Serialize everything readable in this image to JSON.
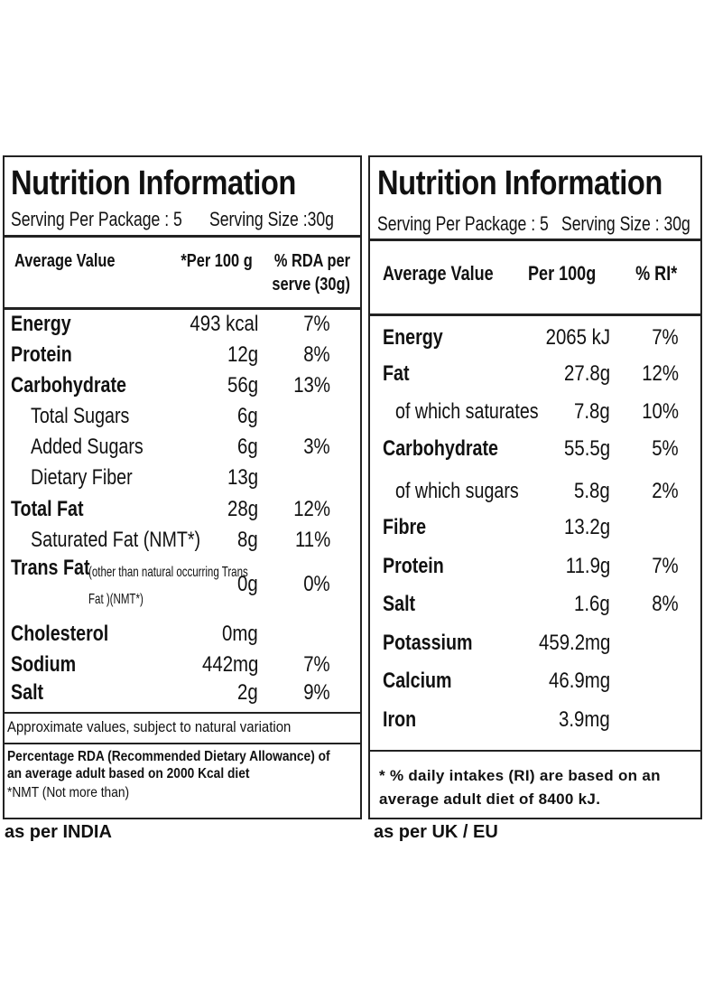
{
  "india": {
    "title": "Nutrition Information",
    "serving_per_package": "Serving Per Package : 5",
    "serving_size": "Serving Size :30g",
    "header": {
      "name": "Average Value",
      "per_100g": "*Per 100 g",
      "rda": "% RDA per serve (30g)"
    },
    "rows": [
      {
        "name": "Energy",
        "per_100g": "493 kcal",
        "rda": "7%"
      },
      {
        "name": "Protein",
        "per_100g": "12g",
        "rda": "8%"
      },
      {
        "name": "Carbohydrate",
        "per_100g": "56g",
        "rda": "13%"
      },
      {
        "name": "Total Sugars",
        "per_100g": "6g"
      },
      {
        "name": "Added Sugars",
        "per_100g": "6g",
        "rda": "3%"
      },
      {
        "name": "Dietary Fiber",
        "per_100g": "13g"
      },
      {
        "name": "Total Fat",
        "per_100g": "28g",
        "rda": "12%"
      },
      {
        "name": "Saturated Fat (NMT*)",
        "per_100g": "8g",
        "rda": "11%"
      },
      {
        "name": "Trans Fat",
        "note": "(other than natural occurring Trans Fat )(NMT*)",
        "per_100g": "0g",
        "rda": "0%"
      },
      {
        "name": "Cholesterol",
        "per_100g": "0mg"
      },
      {
        "name": "Sodium",
        "per_100g": "442mg",
        "rda": "7%"
      },
      {
        "name": "Salt",
        "per_100g": "2g",
        "rda": "9%"
      }
    ],
    "note_variation": "Approximate values, subject to natural variation",
    "note_rda": "Percentage RDA (Recommended Dietary Allowance) of an average adult based on 2000 Kcal diet",
    "note_nmt": "*NMT (Not more than)",
    "caption": "as per INDIA"
  },
  "uk": {
    "title": "Nutrition Information",
    "serving_per_package": "Serving Per Package : 5",
    "serving_size": "Serving Size : 30g",
    "header": {
      "name": "Average Value",
      "per_100g": "Per 100g",
      "rda": "% RI*"
    },
    "rows": [
      {
        "name": "Energy",
        "per_100g": "2065 kJ",
        "rda": "7%"
      },
      {
        "name": "Fat",
        "per_100g": "27.8g",
        "rda": "12%"
      },
      {
        "name": "of which saturates",
        "per_100g": "7.8g",
        "rda": "10%"
      },
      {
        "name": "Carbohydrate",
        "per_100g": "55.5g",
        "rda": "5%"
      },
      {
        "name": "of which sugars",
        "per_100g": "5.8g",
        "rda": "2%"
      },
      {
        "name": "Fibre",
        "per_100g": "13.2g"
      },
      {
        "name": "Protein",
        "per_100g": "11.9g",
        "rda": "7%"
      },
      {
        "name": "Salt",
        "per_100g": "1.6g",
        "rda": "8%"
      },
      {
        "name": "Potassium",
        "per_100g": "459.2mg"
      },
      {
        "name": "Calcium",
        "per_100g": "46.9mg"
      },
      {
        "name": "Iron",
        "per_100g": "3.9mg"
      }
    ],
    "note_ri": "* % daily intakes (RI) are based on an average adult diet of 8400 kJ.",
    "caption": "as per UK / EU"
  }
}
